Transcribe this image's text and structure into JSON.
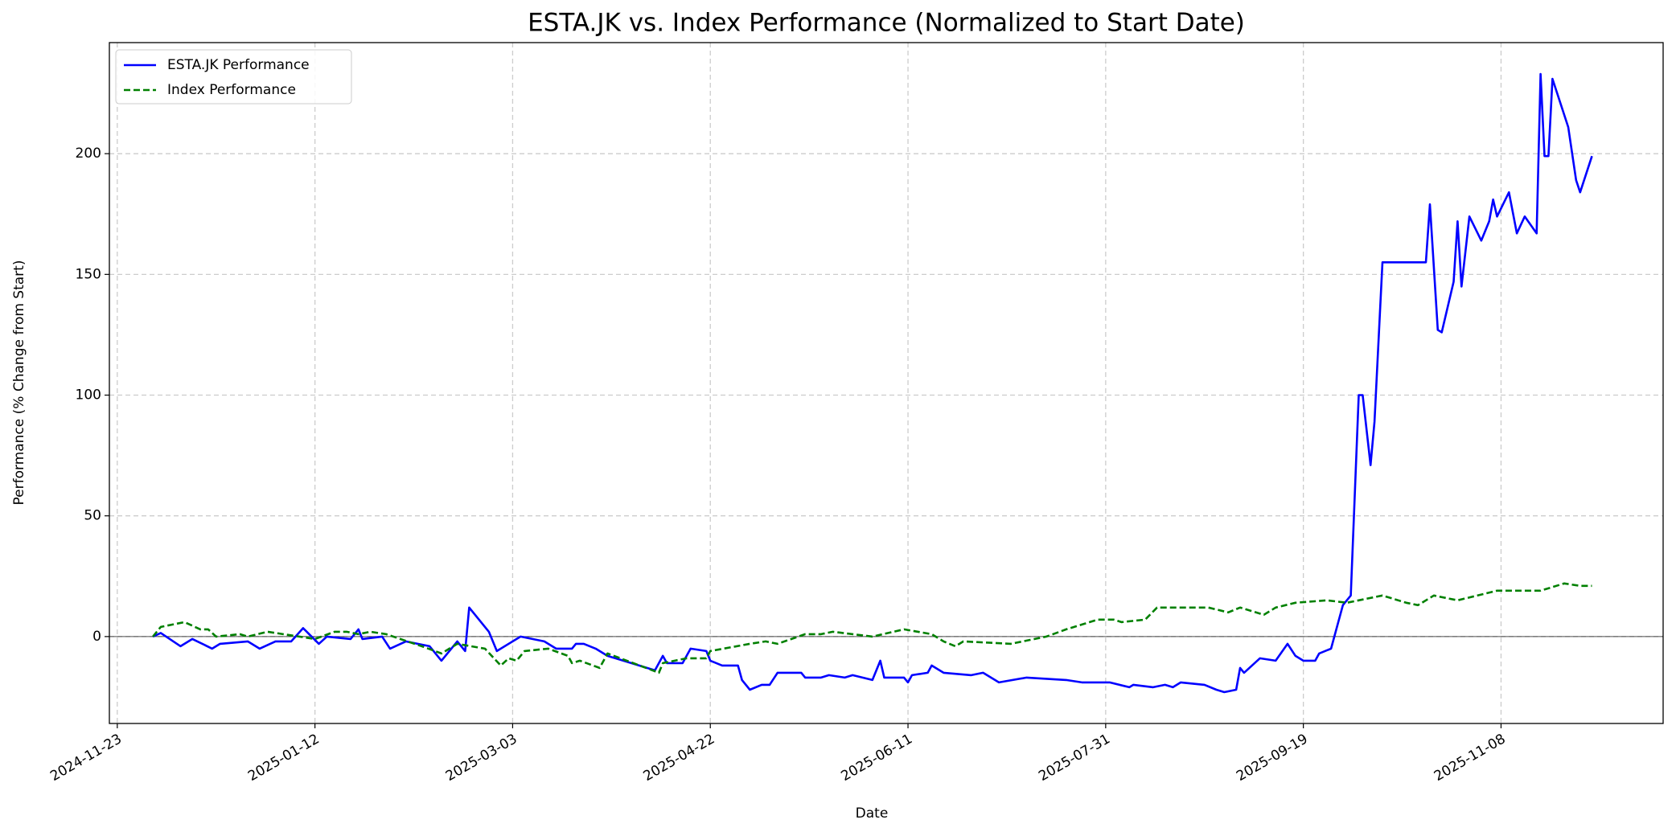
{
  "chart_data": {
    "type": "line",
    "title": "ESTA.JK vs. Index Performance (Normalized to Start Date)",
    "x_label": "Date",
    "y_label": "Performance (% Change from Start)",
    "xlim": [
      "2024-11-21",
      "2025-12-19"
    ],
    "xticks": [
      "2024-11-23",
      "2025-01-12",
      "2025-03-03",
      "2025-04-22",
      "2025-06-11",
      "2025-07-31",
      "2025-09-19",
      "2025-11-08"
    ],
    "ylim": [
      -36,
      246
    ],
    "yticks": [
      0,
      50,
      100,
      150,
      200
    ],
    "grid": true,
    "legend": "upper left",
    "series": [
      {
        "name": "ESTA.JK Performance",
        "color": "#0000ff",
        "style": "solid",
        "x": [
          "2024-12-02",
          "2024-12-04",
          "2024-12-09",
          "2024-12-12",
          "2024-12-17",
          "2024-12-19",
          "2024-12-26",
          "2024-12-29",
          "2025-01-02",
          "2025-01-06",
          "2025-01-09",
          "2025-01-13",
          "2025-01-15",
          "2025-01-21",
          "2025-01-23",
          "2025-01-24",
          "2025-01-29",
          "2025-01-31",
          "2025-02-04",
          "2025-02-10",
          "2025-02-13",
          "2025-02-17",
          "2025-02-19",
          "2025-02-20",
          "2025-02-25",
          "2025-02-27",
          "2025-03-03",
          "2025-03-05",
          "2025-03-11",
          "2025-03-14",
          "2025-03-18",
          "2025-03-19",
          "2025-03-21",
          "2025-03-24",
          "2025-03-27",
          "2025-04-08",
          "2025-04-10",
          "2025-04-11",
          "2025-04-15",
          "2025-04-17",
          "2025-04-21",
          "2025-04-22",
          "2025-04-25",
          "2025-04-29",
          "2025-04-30",
          "2025-05-02",
          "2025-05-05",
          "2025-05-07",
          "2025-05-09",
          "2025-05-15",
          "2025-05-16",
          "2025-05-20",
          "2025-05-22",
          "2025-05-26",
          "2025-05-28",
          "2025-06-02",
          "2025-06-04",
          "2025-06-05",
          "2025-06-10",
          "2025-06-11",
          "2025-06-12",
          "2025-06-16",
          "2025-06-17",
          "2025-06-20",
          "2025-06-27",
          "2025-06-30",
          "2025-07-03",
          "2025-07-04",
          "2025-07-11",
          "2025-07-21",
          "2025-07-25",
          "2025-08-01",
          "2025-08-06",
          "2025-08-07",
          "2025-08-12",
          "2025-08-15",
          "2025-08-17",
          "2025-08-19",
          "2025-08-25",
          "2025-08-28",
          "2025-08-30",
          "2025-09-02",
          "2025-09-03",
          "2025-09-04",
          "2025-09-08",
          "2025-09-12",
          "2025-09-15",
          "2025-09-17",
          "2025-09-19",
          "2025-09-22",
          "2025-09-23",
          "2025-09-26",
          "2025-09-29",
          "2025-10-01",
          "2025-10-03",
          "2025-10-04",
          "2025-10-06",
          "2025-10-07",
          "2025-10-09",
          "2025-10-20",
          "2025-10-21",
          "2025-10-23",
          "2025-10-24",
          "2025-10-27",
          "2025-10-28",
          "2025-10-29",
          "2025-10-31",
          "2025-11-03",
          "2025-11-05",
          "2025-11-06",
          "2025-11-07",
          "2025-11-10",
          "2025-11-12",
          "2025-11-14",
          "2025-11-17",
          "2025-11-18",
          "2025-11-19",
          "2025-11-20",
          "2025-11-21",
          "2025-11-25",
          "2025-11-27",
          "2025-11-28",
          "2025-12-01"
        ],
        "values": [
          0,
          1.5,
          -4,
          -1,
          -5,
          -3,
          -2,
          -5,
          -2,
          -2,
          3.5,
          -3,
          0,
          -1,
          3,
          -1,
          0,
          -5,
          -2,
          -4,
          -10,
          -2,
          -6,
          12,
          2,
          -6,
          -2,
          0,
          -2,
          -5,
          -5,
          -3,
          -3,
          -5,
          -8,
          -14,
          -8,
          -11,
          -11,
          -5,
          -6,
          -10,
          -12,
          -12,
          -18,
          -22,
          -20,
          -20,
          -15,
          -15,
          -17,
          -17,
          -16,
          -17,
          -16,
          -18,
          -10,
          -17,
          -17,
          -19,
          -16,
          -15,
          -12,
          -15,
          -16,
          -15,
          -18,
          -19,
          -17,
          -18,
          -19,
          -19,
          -21,
          -20,
          -21,
          -20,
          -21,
          -19,
          -20,
          -22,
          -23,
          -22,
          -13,
          -15,
          -9,
          -10,
          -3,
          -8,
          -10,
          -10,
          -7,
          -5,
          13,
          17,
          100,
          100,
          71,
          89,
          155,
          155,
          179,
          127,
          126,
          147,
          172,
          145,
          174,
          164,
          172,
          181,
          174,
          184,
          167,
          174,
          167,
          233,
          199,
          199,
          231,
          211,
          189,
          184,
          199
        ]
      },
      {
        "name": "Index Performance",
        "color": "#008000",
        "style": "dashed",
        "x": [
          "2024-12-02",
          "2024-12-04",
          "2024-12-07",
          "2024-12-10",
          "2024-12-14",
          "2024-12-16",
          "2024-12-18",
          "2024-12-24",
          "2024-12-26",
          "2024-12-31",
          "2025-01-08",
          "2025-01-12",
          "2025-01-17",
          "2025-01-20",
          "2025-01-23",
          "2025-01-26",
          "2025-01-30",
          "2025-02-08",
          "2025-02-13",
          "2025-02-17",
          "2025-02-24",
          "2025-02-28",
          "2025-03-02",
          "2025-03-04",
          "2025-03-06",
          "2025-03-12",
          "2025-03-17",
          "2025-03-18",
          "2025-03-20",
          "2025-03-25",
          "2025-03-27",
          "2025-04-09",
          "2025-04-10",
          "2025-04-16",
          "2025-04-21",
          "2025-04-22",
          "2025-05-02",
          "2025-05-06",
          "2025-05-09",
          "2025-05-16",
          "2025-05-20",
          "2025-05-23",
          "2025-06-02",
          "2025-06-10",
          "2025-06-17",
          "2025-06-20",
          "2025-06-23",
          "2025-06-25",
          "2025-07-07",
          "2025-07-16",
          "2025-07-21",
          "2025-07-25",
          "2025-07-29",
          "2025-08-02",
          "2025-08-04",
          "2025-08-10",
          "2025-08-13",
          "2025-08-26",
          "2025-08-31",
          "2025-09-03",
          "2025-09-09",
          "2025-09-12",
          "2025-09-17",
          "2025-09-25",
          "2025-09-30",
          "2025-10-09",
          "2025-10-15",
          "2025-10-18",
          "2025-10-22",
          "2025-10-28",
          "2025-11-07",
          "2025-11-18",
          "2025-11-24",
          "2025-11-28",
          "2025-12-01"
        ],
        "values": [
          0,
          4,
          5,
          6,
          3,
          3,
          0,
          1,
          0,
          2,
          0,
          -1,
          2,
          2,
          1,
          2,
          1,
          -4,
          -7,
          -3,
          -5,
          -12,
          -9,
          -10,
          -6,
          -5,
          -8,
          -11,
          -10,
          -13,
          -7,
          -15,
          -11,
          -9,
          -9,
          -6,
          -3,
          -2,
          -3,
          1,
          1,
          2,
          0,
          3,
          1,
          -2,
          -4,
          -2,
          -3,
          0,
          3,
          5,
          7,
          7,
          6,
          7,
          12,
          12,
          10,
          12,
          9,
          12,
          14,
          15,
          14,
          17,
          14,
          13,
          17,
          15,
          19,
          19,
          22,
          21,
          21
        ]
      }
    ]
  }
}
